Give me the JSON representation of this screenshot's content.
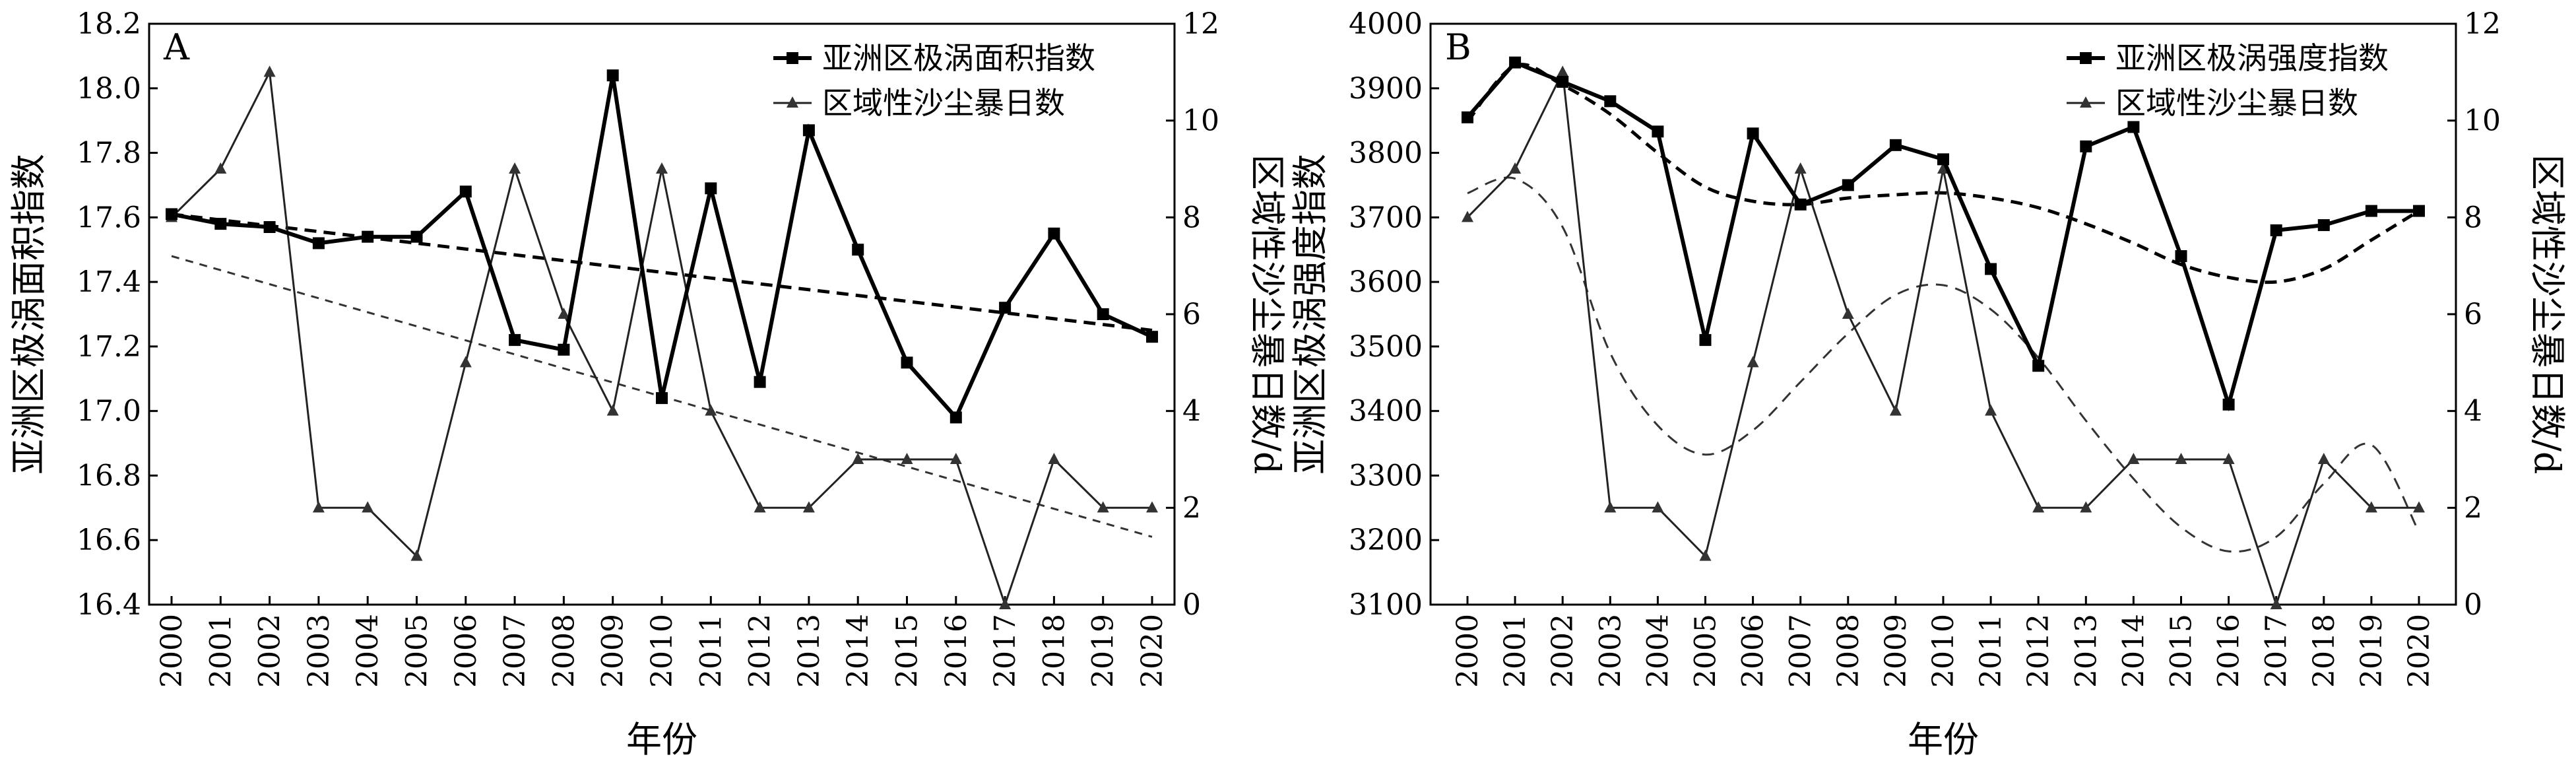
{
  "chart_data": [
    {
      "panel_label": "A",
      "type": "line",
      "x": [
        2000,
        2001,
        2002,
        2003,
        2004,
        2005,
        2006,
        2007,
        2008,
        2009,
        2010,
        2011,
        2012,
        2013,
        2014,
        2015,
        2016,
        2017,
        2018,
        2019,
        2020
      ],
      "x_tick_labels": [
        "2000",
        "2001",
        "2002",
        "2003",
        "2004",
        "2005",
        "2006",
        "2007",
        "2008",
        "2009",
        "2010",
        "2011",
        "2012",
        "2013",
        "2014",
        "2015",
        "2016",
        "2017",
        "2018",
        "2019",
        "2020"
      ],
      "xlabel": "年份",
      "ylabel_left": "亚洲区极涡面积指数",
      "ylabel_right": "区域性沙尘暴日数/d",
      "ylim_left": [
        16.4,
        18.2
      ],
      "ylim_right": [
        0,
        12
      ],
      "yticks_left": [
        "16.4",
        "16.6",
        "16.8",
        "17.0",
        "17.2",
        "17.4",
        "17.6",
        "17.8",
        "18.0",
        "18.2"
      ],
      "yticks_right": [
        "0",
        "2",
        "4",
        "6",
        "8",
        "10",
        "12"
      ],
      "series": [
        {
          "name": "亚洲区极涡面积指数",
          "axis": "left",
          "marker": "square",
          "values": [
            17.61,
            17.58,
            17.57,
            17.52,
            17.54,
            17.54,
            17.68,
            17.22,
            17.19,
            18.04,
            17.04,
            17.69,
            17.09,
            17.87,
            17.5,
            17.15,
            16.98,
            17.32,
            17.55,
            17.3,
            17.23
          ]
        },
        {
          "name": "区域性沙尘暴日数",
          "axis": "right",
          "marker": "triangle",
          "values": [
            8,
            9,
            11,
            2,
            2,
            1,
            5,
            9,
            6,
            4,
            9,
            4,
            2,
            2,
            3,
            3,
            3,
            0,
            3,
            2,
            2
          ]
        }
      ],
      "trend_area": [
        17.61,
        17.25
      ],
      "trend_dust": [
        7.2,
        1.4
      ]
    },
    {
      "panel_label": "B",
      "type": "line",
      "x": [
        2000,
        2001,
        2002,
        2003,
        2004,
        2005,
        2006,
        2007,
        2008,
        2009,
        2010,
        2011,
        2012,
        2013,
        2014,
        2015,
        2016,
        2017,
        2018,
        2019,
        2020
      ],
      "x_tick_labels": [
        "2000",
        "2001",
        "2002",
        "2003",
        "2004",
        "2005",
        "2006",
        "2007",
        "2008",
        "2009",
        "2010",
        "2011",
        "2012",
        "2013",
        "2014",
        "2015",
        "2016",
        "2017",
        "2018",
        "2019",
        "2020"
      ],
      "xlabel": "年份",
      "ylabel_left": "亚洲区极涡强度指数",
      "ylabel_right": "区域性沙尘暴日数/d",
      "ylim_left": [
        3100,
        4000
      ],
      "ylim_right": [
        0,
        12
      ],
      "yticks_left": [
        "3100",
        "3200",
        "3300",
        "3400",
        "3500",
        "3600",
        "3700",
        "3800",
        "3900",
        "4000"
      ],
      "yticks_right": [
        "0",
        "2",
        "4",
        "6",
        "8",
        "10",
        "12"
      ],
      "series": [
        {
          "name": "亚洲区极涡强度指数",
          "axis": "left",
          "marker": "square",
          "values": [
            3855,
            3940,
            3910,
            3880,
            3833,
            3510,
            3830,
            3720,
            3750,
            3812,
            3790,
            3620,
            3470,
            3810,
            3840,
            3640,
            3410,
            3680,
            3688,
            3710,
            3710
          ]
        },
        {
          "name": "区域性沙尘暴日数",
          "axis": "right",
          "marker": "triangle",
          "values": [
            8,
            9,
            11,
            2,
            2,
            1,
            5,
            9,
            6,
            4,
            9,
            4,
            2,
            2,
            3,
            3,
            3,
            0,
            3,
            2,
            2
          ]
        }
      ],
      "trend_intensity": [
        3848,
        3935,
        3905,
        3860,
        3800,
        3747,
        3725,
        3720,
        3730,
        3735,
        3738,
        3730,
        3715,
        3690,
        3660,
        3627,
        3607,
        3600,
        3620,
        3665,
        3710
      ],
      "trend_dust": [
        8.5,
        8.8,
        7.8,
        5.2,
        3.7,
        3.1,
        3.6,
        4.6,
        5.6,
        6.4,
        6.6,
        6.1,
        5.1,
        3.8,
        2.6,
        1.6,
        1.1,
        1.4,
        2.5,
        3.3,
        1.5
      ]
    }
  ]
}
